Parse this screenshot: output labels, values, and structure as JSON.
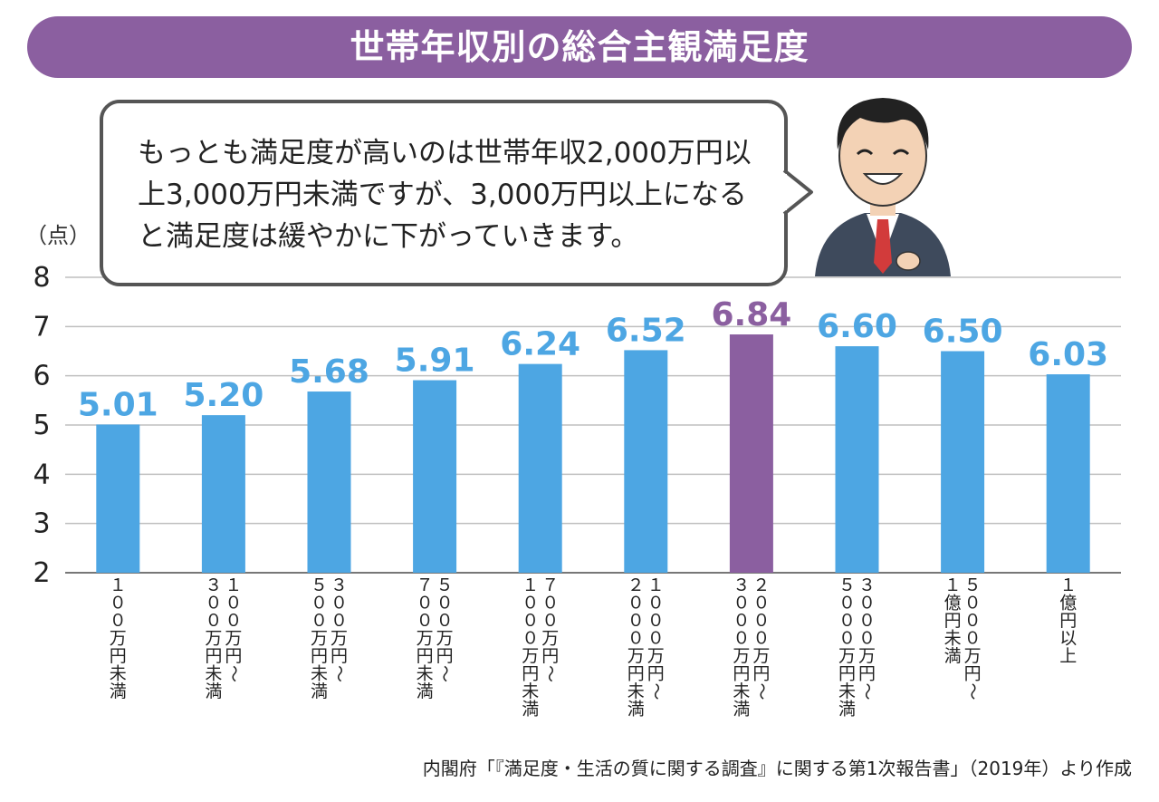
{
  "title": "世帯年収別の総合主観満足度",
  "bubble_text": "もっとも満足度が高いのは世帯年収2,000万円以上3,000万円未満ですが、3,000万円以上になると満足度は緩やかに下がっていきます。",
  "unit_label": "（点）",
  "source": "内閣府「『満足度・生活の質に関する調査』に関する第1次報告書」（2019年）より作成",
  "colors": {
    "bar": "#4da6e3",
    "highlight": "#8b5fa0",
    "title_bg": "#8b5fa0"
  },
  "chart_data": {
    "type": "bar",
    "title": "世帯年収別の総合主観満足度",
    "ylabel": "（点）",
    "xlabel": "",
    "ylim": [
      2,
      8
    ],
    "yticks": [
      2,
      3,
      4,
      5,
      6,
      7,
      8
    ],
    "grid": true,
    "highlight_index": 6,
    "categories": [
      "100万円未満",
      "100万円～300万円未満",
      "300万円～500万円未満",
      "500万円～700万円未満",
      "700万円～1000万円未満",
      "1000万円～2000万円未満",
      "2000万円～3000万円未満",
      "3000万円～5000万円未満",
      "5000万円～1億円未満",
      "1億円以上"
    ],
    "category_columns": [
      [
        "１００万円未満"
      ],
      [
        "１００万円～",
        "３００万円未満"
      ],
      [
        "３００万円～",
        "５００万円未満"
      ],
      [
        "５００万円～",
        "７００万円未満"
      ],
      [
        "７００万円～",
        "１０００万円未満"
      ],
      [
        "１０００万円～",
        "２０００万円未満"
      ],
      [
        "２０００万円～",
        "３０００万円未満"
      ],
      [
        "３０００万円～",
        "５０００万円未満"
      ],
      [
        "５０００万円～",
        "１億円未満"
      ],
      [
        "１億円以上"
      ]
    ],
    "values": [
      5.01,
      5.2,
      5.68,
      5.91,
      6.24,
      6.52,
      6.84,
      6.6,
      6.5,
      6.03
    ],
    "value_labels": [
      "5.01",
      "5.20",
      "5.68",
      "5.91",
      "6.24",
      "6.52",
      "6.84",
      "6.60",
      "6.50",
      "6.03"
    ]
  }
}
